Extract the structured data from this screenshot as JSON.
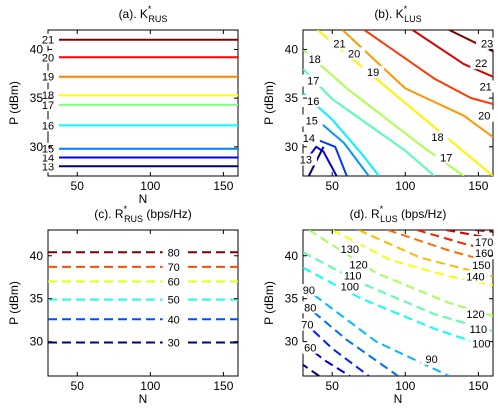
{
  "figure": {
    "background": "#ffffff",
    "colormap": "jet"
  },
  "chart_data": [
    {
      "type": "contour",
      "title_main": "(a). K",
      "title_sup": "*",
      "title_sub": "RUS",
      "xlabel": "N",
      "ylabel": "P (dBm)",
      "xlim": [
        30,
        160
      ],
      "ylim": [
        27,
        42
      ],
      "xticks": [
        50,
        100,
        150
      ],
      "yticks": [
        30,
        35,
        40
      ],
      "line_style": "solid",
      "level_range": [
        13,
        21
      ],
      "contours": [
        {
          "level": 13,
          "label": "13",
          "points": [
            [
              30,
              28.0
            ],
            [
              160,
              28.0
            ]
          ],
          "label_at": [
            30,
            28.0
          ]
        },
        {
          "level": 14,
          "label": "14",
          "points": [
            [
              30,
              28.9
            ],
            [
              160,
              28.9
            ]
          ],
          "label_at": [
            30,
            28.9
          ]
        },
        {
          "level": 15,
          "label": "15",
          "points": [
            [
              30,
              29.8
            ],
            [
              160,
              29.8
            ]
          ],
          "label_at": [
            30,
            29.8
          ]
        },
        {
          "level": 16,
          "label": "16",
          "points": [
            [
              30,
              32.2
            ],
            [
              160,
              32.2
            ]
          ],
          "label_at": [
            30,
            32.2
          ]
        },
        {
          "level": 17,
          "label": "17",
          "points": [
            [
              30,
              34.3
            ],
            [
              160,
              34.3
            ]
          ],
          "label_at": [
            30,
            34.3
          ]
        },
        {
          "level": 18,
          "label": "18",
          "points": [
            [
              30,
              35.3
            ],
            [
              160,
              35.3
            ]
          ],
          "label_at": [
            30,
            35.3
          ]
        },
        {
          "level": 19,
          "label": "19",
          "points": [
            [
              30,
              37.2
            ],
            [
              160,
              37.2
            ]
          ],
          "label_at": [
            30,
            37.2
          ]
        },
        {
          "level": 20,
          "label": "20",
          "points": [
            [
              30,
              39.2
            ],
            [
              160,
              39.2
            ]
          ],
          "label_at": [
            30,
            39.2
          ]
        },
        {
          "level": 21,
          "label": "21",
          "points": [
            [
              30,
              41.0
            ],
            [
              160,
              41.0
            ]
          ],
          "label_at": [
            30,
            41.0
          ]
        }
      ]
    },
    {
      "type": "contour",
      "title_main": "(b). K",
      "title_sup": "*",
      "title_sub": "LUS",
      "xlabel": "",
      "ylabel": "P (dBm)",
      "xlim": [
        30,
        160
      ],
      "ylim": [
        27,
        42
      ],
      "xticks": [
        50,
        100,
        150
      ],
      "yticks": [
        30,
        35,
        40
      ],
      "line_style": "solid",
      "level_range": [
        12,
        23
      ],
      "contours": [
        {
          "level": 12,
          "label": "",
          "points": [
            [
              34,
              27.0
            ],
            [
              44,
              30.0
            ]
          ],
          "label_at": null
        },
        {
          "level": 13,
          "label": "13",
          "points": [
            [
              30,
              28.2
            ],
            [
              39,
              30.0
            ],
            [
              44,
              29.5
            ],
            [
              53,
              27.0
            ]
          ],
          "label_at": [
            32,
            28.7
          ]
        },
        {
          "level": 14,
          "label": "14",
          "points": [
            [
              30,
              30.8
            ],
            [
              42,
              30.6
            ],
            [
              52,
              30.0
            ],
            [
              60,
              27.0
            ]
          ],
          "label_at": [
            34,
            30.9
          ]
        },
        {
          "level": 15,
          "label": "15",
          "points": [
            [
              30,
              33.0
            ],
            [
              44,
              32.2
            ],
            [
              58,
              30.4
            ],
            [
              75,
              27.0
            ]
          ],
          "label_at": [
            36,
            32.7
          ]
        },
        {
          "level": 16,
          "label": "16",
          "points": [
            [
              30,
              35.5
            ],
            [
              50,
              32.8
            ],
            [
              70,
              29.3
            ],
            [
              82,
              27.0
            ]
          ],
          "label_at": [
            37,
            34.7
          ]
        },
        {
          "level": 17,
          "label": "17",
          "points": [
            [
              30,
              38.0
            ],
            [
              50,
              34.9
            ],
            [
              100,
              29.6
            ],
            [
              120,
              27.0
            ]
          ],
          "label_at": [
            37,
            36.8
          ],
          "extra_label": "17",
          "extra_label_at": [
            128,
            28.9
          ]
        },
        {
          "level": 18,
          "label": "18",
          "points": [
            [
              30,
              40.0
            ],
            [
              60,
              36.0
            ],
            [
              112,
              30.0
            ],
            [
              140,
              27.0
            ]
          ],
          "label_at": [
            38,
            39.0
          ],
          "extra_label": "18",
          "extra_label_at": [
            122,
            31.0
          ]
        },
        {
          "level": 19,
          "label": "19",
          "points": [
            [
              40,
              42.0
            ],
            [
              80,
              37.0
            ],
            [
              120,
              32.0
            ],
            [
              160,
              27.0
            ]
          ],
          "label_at": [
            78,
            37.7
          ]
        },
        {
          "level": 20,
          "label": "20",
          "points": [
            [
              57,
              42.0
            ],
            [
              100,
              36.0
            ],
            [
              140,
              33.2
            ],
            [
              160,
              31.0
            ]
          ],
          "label_at": [
            65,
            39.6
          ],
          "extra_label": "20",
          "extra_label_at": [
            154,
            33.2
          ]
        },
        {
          "level": 21,
          "label": "21",
          "points": [
            [
              72,
              42.0
            ],
            [
              120,
              37.0
            ],
            [
              145,
              35.0
            ],
            [
              160,
              34.4
            ]
          ],
          "label_at": [
            55,
            40.6
          ],
          "extra_label": "21",
          "extra_label_at": [
            155,
            36.2
          ]
        },
        {
          "level": 22,
          "label": "22",
          "points": [
            [
              105,
              42.0
            ],
            [
              140,
              38.5
            ],
            [
              160,
              37.2
            ]
          ],
          "label_at": [
            152,
            38.6
          ]
        },
        {
          "level": 23,
          "label": "23",
          "points": [
            [
              130,
              42.0
            ],
            [
              160,
              39.8
            ]
          ],
          "label_at": [
            156,
            40.6
          ]
        }
      ]
    },
    {
      "type": "contour",
      "title_main": "(c). R",
      "title_sup": "*",
      "title_sub": "RUS",
      "title_suffix": " (bps/Hz)",
      "xlabel": "N",
      "ylabel": "P (dBm)",
      "xlim": [
        30,
        160
      ],
      "ylim": [
        26,
        43
      ],
      "xticks": [
        50,
        100,
        150
      ],
      "yticks": [
        30,
        35,
        40
      ],
      "line_style": "dashed",
      "level_range": [
        30,
        80
      ],
      "contours": [
        {
          "level": 30,
          "label": "30",
          "points": [
            [
              30,
              29.9
            ],
            [
              160,
              29.9
            ]
          ],
          "label_at": [
            116,
            29.9
          ]
        },
        {
          "level": 40,
          "label": "40",
          "points": [
            [
              30,
              32.6
            ],
            [
              160,
              32.6
            ]
          ],
          "label_at": [
            116,
            32.6
          ]
        },
        {
          "level": 50,
          "label": "50",
          "points": [
            [
              30,
              34.9
            ],
            [
              160,
              34.9
            ]
          ],
          "label_at": [
            116,
            34.9
          ]
        },
        {
          "level": 60,
          "label": "60",
          "points": [
            [
              30,
              37.0
            ],
            [
              160,
              37.0
            ]
          ],
          "label_at": [
            116,
            37.0
          ]
        },
        {
          "level": 70,
          "label": "70",
          "points": [
            [
              30,
              38.7
            ],
            [
              160,
              38.7
            ]
          ],
          "label_at": [
            116,
            38.7
          ]
        },
        {
          "level": 80,
          "label": "80",
          "points": [
            [
              30,
              40.4
            ],
            [
              160,
              40.4
            ]
          ],
          "label_at": [
            116,
            40.4
          ]
        }
      ]
    },
    {
      "type": "contour",
      "title_main": "(d). R",
      "title_sup": "*",
      "title_sub": "LUS",
      "title_suffix": " (bps/Hz)",
      "xlabel": "N",
      "ylabel": "P (dBm)",
      "xlim": [
        30,
        160
      ],
      "ylim": [
        26,
        43
      ],
      "xticks": [
        50,
        100,
        150
      ],
      "yticks": [
        30,
        35,
        40
      ],
      "line_style": "dashed",
      "level_range": [
        50,
        180
      ],
      "contours": [
        {
          "level": 50,
          "label": "",
          "points": [
            [
              41,
              26.0
            ],
            [
              30,
              27.3
            ]
          ],
          "label_at": null
        },
        {
          "level": 60,
          "label": "60",
          "points": [
            [
              30,
              29.8
            ],
            [
              45,
              27.8
            ],
            [
              62,
              26.0
            ]
          ],
          "label_at": [
            35,
            29.3
          ]
        },
        {
          "level": 70,
          "label": "70",
          "points": [
            [
              30,
              32.4
            ],
            [
              50,
              29.2
            ],
            [
              75,
              26.0
            ]
          ],
          "label_at": [
            33,
            32.0
          ]
        },
        {
          "level": 80,
          "label": "80",
          "points": [
            [
              30,
              34.5
            ],
            [
              60,
              30.2
            ],
            [
              95,
              26.0
            ]
          ],
          "label_at": [
            35,
            34.0
          ]
        },
        {
          "level": 90,
          "label": "90",
          "points": [
            [
              30,
              36.4
            ],
            [
              80,
              30.0
            ],
            [
              130,
              26.0
            ]
          ],
          "label_at": [
            34,
            36.0
          ],
          "extra_label": "90",
          "extra_label_at": [
            118,
            28.0
          ]
        },
        {
          "level": 100,
          "label": "100",
          "points": [
            [
              30,
              38.6
            ],
            [
              70,
              35.0
            ],
            [
              120,
              31.5
            ],
            [
              160,
              29.2
            ]
          ],
          "label_at": [
            62,
            36.4
          ],
          "extra_label": "100",
          "extra_label_at": [
            152,
            29.8
          ]
        },
        {
          "level": 110,
          "label": "110",
          "points": [
            [
              30,
              40.4
            ],
            [
              70,
              36.8
            ],
            [
              120,
              33.2
            ],
            [
              160,
              31.2
            ]
          ],
          "label_at": [
            64,
            37.7
          ],
          "extra_label": "110",
          "extra_label_at": [
            150,
            31.5
          ]
        },
        {
          "level": 120,
          "label": "120",
          "points": [
            [
              34,
              43.0
            ],
            [
              80,
              38.0
            ],
            [
              130,
              34.5
            ],
            [
              160,
              33.0
            ]
          ],
          "label_at": [
            68,
            39.0
          ],
          "extra_label": "120",
          "extra_label_at": [
            148,
            33.2
          ]
        },
        {
          "level": 130,
          "label": "130",
          "points": [
            [
              50,
              43.0
            ],
            [
              90,
              39.5
            ],
            [
              130,
              37.6
            ],
            [
              160,
              36.6
            ]
          ],
          "label_at": [
            62,
            40.8
          ]
        },
        {
          "level": 140,
          "label": "140",
          "points": [
            [
              68,
              43.0
            ],
            [
              110,
              39.8
            ],
            [
              160,
              37.6
            ]
          ],
          "label_at": [
            148,
            37.6
          ]
        },
        {
          "level": 150,
          "label": "150",
          "points": [
            [
              88,
              43.0
            ],
            [
              130,
              40.6
            ],
            [
              160,
              39.2
            ]
          ],
          "label_at": [
            152,
            38.9
          ]
        },
        {
          "level": 160,
          "label": "160",
          "points": [
            [
              108,
              43.0
            ],
            [
              140,
              41.4
            ],
            [
              160,
              40.6
            ]
          ],
          "label_at": [
            154,
            40.3
          ]
        },
        {
          "level": 170,
          "label": "170",
          "points": [
            [
              128,
              43.0
            ],
            [
              160,
              42.0
            ]
          ],
          "label_at": [
            154,
            41.6
          ]
        },
        {
          "level": 180,
          "label": "",
          "points": [
            [
              148,
              43.0
            ],
            [
              160,
              42.8
            ]
          ],
          "label_at": null
        }
      ]
    }
  ]
}
